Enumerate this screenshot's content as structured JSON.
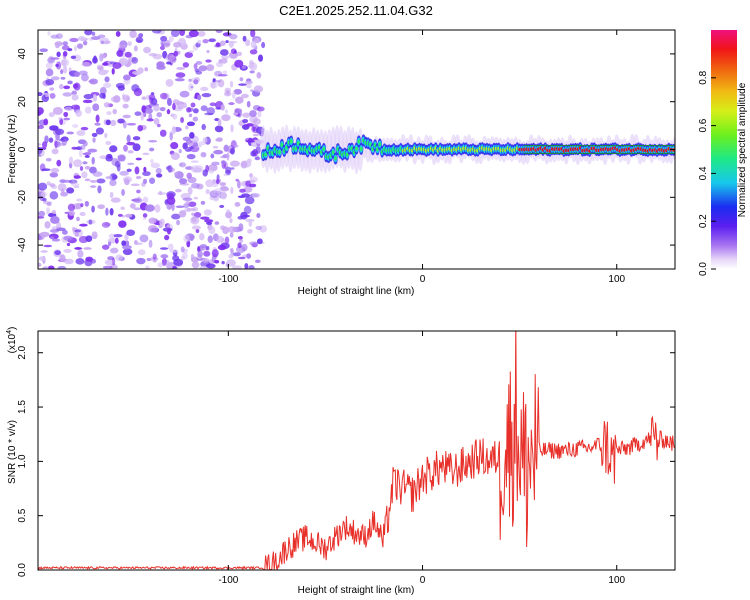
{
  "title": "C2E1.2025.252.11.04.G32",
  "chart_data": [
    {
      "type": "heatmap",
      "name": "spectrogram",
      "xlabel": "Height of straight line (km)",
      "ylabel": "Frequency (Hz)",
      "xlim": [
        -198,
        130
      ],
      "ylim": [
        -50,
        50
      ],
      "x_ticks": [
        -100,
        0,
        100
      ],
      "y_ticks": [
        -40,
        -20,
        0,
        20,
        40
      ],
      "x_tick_labels": [
        "-100",
        "0",
        "100"
      ],
      "y_tick_labels": [
        "-40",
        "-20",
        "0",
        "20",
        "40"
      ],
      "colorbar": {
        "label": "Normalized spectral amplitude",
        "range": [
          0,
          1
        ],
        "ticks": [
          0.0,
          0.2,
          0.4,
          0.6,
          0.8
        ],
        "tick_labels": [
          "0.0",
          "0.2",
          "0.4",
          "0.6",
          "0.8"
        ],
        "colormap": [
          "#ffffff",
          "#c9a6f2",
          "#7f2cf0",
          "#2a28ee",
          "#1ad0e6",
          "#2aef5f",
          "#b4ef1c",
          "#f0cf15",
          "#f08010",
          "#f01010",
          "#f0108c"
        ]
      },
      "regions": [
        {
          "name": "noise",
          "x_range": [
            -198,
            -82
          ],
          "freq_range": [
            -50,
            50
          ],
          "amplitude_range": [
            0.0,
            0.15
          ]
        },
        {
          "name": "signal-line",
          "x_range": [
            -82,
            130
          ],
          "center_frequency": 0,
          "amplitude_range": [
            0.3,
            1.0
          ]
        }
      ]
    },
    {
      "type": "line",
      "name": "snr",
      "xlabel": "Height of straight line (km)",
      "ylabel": "SNR (10 * v/v)",
      "y_scale_label": "(x10",
      "y_scale_exponent": "4",
      "xlim": [
        -198,
        130
      ],
      "ylim": [
        0,
        2.2
      ],
      "x_ticks": [
        -100,
        0,
        100
      ],
      "y_ticks": [
        0.0,
        0.5,
        1.0,
        1.5,
        2.0
      ],
      "x_tick_labels": [
        "-100",
        "0",
        "100"
      ],
      "y_tick_labels": [
        "0.0",
        "0.5",
        "1.0",
        "1.5",
        "2.0"
      ],
      "color": "#e8302a",
      "series": [
        {
          "name": "SNR",
          "x": [
            -198,
            -150,
            -100,
            -85,
            -80,
            -75,
            -70,
            -65,
            -60,
            -55,
            -50,
            -45,
            -40,
            -35,
            -30,
            -25,
            -20,
            -15,
            -10,
            -5,
            0,
            5,
            10,
            15,
            20,
            25,
            30,
            35,
            40,
            42,
            45,
            48,
            50,
            52,
            55,
            58,
            60,
            65,
            70,
            75,
            80,
            85,
            90,
            95,
            98,
            100,
            105,
            110,
            115,
            120,
            125,
            130
          ],
          "y": [
            0.02,
            0.02,
            0.02,
            0.02,
            0.03,
            0.08,
            0.2,
            0.25,
            0.3,
            0.25,
            0.2,
            0.3,
            0.4,
            0.35,
            0.3,
            0.45,
            0.25,
            0.8,
            0.75,
            0.7,
            0.85,
            0.9,
            0.95,
            0.9,
            0.95,
            1.0,
            1.05,
            1.0,
            1.05,
            1.3,
            1.1,
            1.5,
            1.2,
            0.9,
            1.0,
            1.1,
            1.1,
            1.1,
            1.1,
            1.1,
            1.12,
            1.12,
            1.15,
            1.15,
            1.0,
            1.1,
            1.12,
            1.15,
            1.2,
            1.2,
            1.2,
            1.15
          ]
        }
      ]
    }
  ]
}
